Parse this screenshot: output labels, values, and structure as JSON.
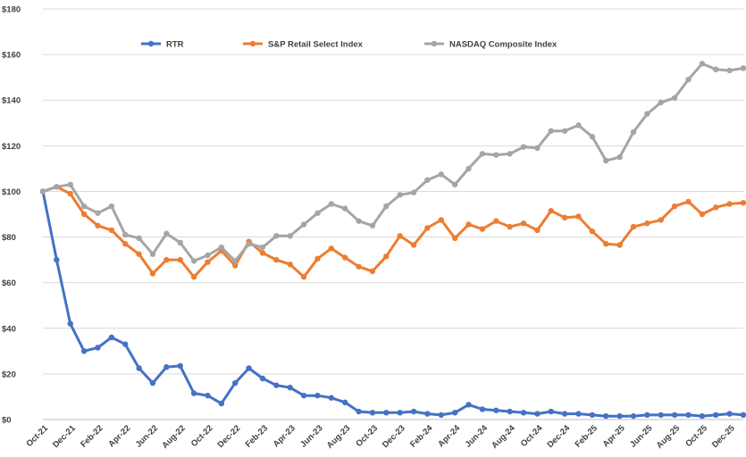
{
  "chart_data": {
    "type": "line",
    "title": "",
    "xlabel": "",
    "ylabel": "",
    "ylim": [
      0,
      180
    ],
    "yticks": [
      0,
      20,
      40,
      60,
      80,
      100,
      120,
      140,
      160,
      180
    ],
    "y_tick_labels": [
      "$0",
      "$20",
      "$40",
      "$60",
      "$80",
      "$100",
      "$120",
      "$140",
      "$160",
      "$180"
    ],
    "grid": "horizontal",
    "legend_position": "top-left",
    "x_tick_labels": [
      "Oct-21",
      "Dec-21",
      "Feb-22",
      "Apr-22",
      "Jun-22",
      "Aug-22",
      "Oct-22",
      "Dec-22",
      "Feb-23",
      "Apr-23",
      "Jun-23",
      "Aug-23",
      "Oct-23",
      "Dec-23",
      "Feb-24",
      "Apr-24",
      "Jun-24",
      "Aug-24",
      "Oct-24",
      "Dec-24",
      "Feb-25",
      "Apr-25",
      "Jun-25",
      "Aug-25",
      "Oct-25",
      "Dec-25"
    ],
    "x": [
      "Oct-21",
      "Nov-21",
      "Dec-21",
      "Jan-22",
      "Feb-22",
      "Mar-22",
      "Apr-22",
      "May-22",
      "Jun-22",
      "Jul-22",
      "Aug-22",
      "Sep-22",
      "Oct-22",
      "Nov-22",
      "Dec-22",
      "Jan-23",
      "Feb-23",
      "Mar-23",
      "Apr-23",
      "May-23",
      "Jun-23",
      "Jul-23",
      "Aug-23",
      "Sep-23",
      "Oct-23",
      "Nov-23",
      "Dec-23",
      "Jan-24",
      "Feb-24",
      "Mar-24",
      "Apr-24",
      "May-24",
      "Jun-24",
      "Jul-24",
      "Aug-24",
      "Sep-24",
      "Oct-24",
      "Nov-24",
      "Dec-24",
      "Jan-25",
      "Feb-25",
      "Mar-25",
      "Apr-25",
      "May-25",
      "Jun-25",
      "Jul-25",
      "Aug-25",
      "Sep-25",
      "Oct-25",
      "Nov-25",
      "Dec-25",
      "Jan-26"
    ],
    "series": [
      {
        "name": "RTR",
        "color": "#4472C4",
        "values": [
          100,
          70,
          42,
          30,
          31.5,
          36,
          33,
          22.5,
          16,
          23,
          23.5,
          11.5,
          10.5,
          7,
          16,
          22.5,
          18,
          15,
          14,
          10.5,
          10.5,
          9.5,
          7.5,
          3.5,
          3,
          3,
          3,
          3.5,
          2.5,
          2,
          3,
          6.5,
          4.5,
          4,
          3.5,
          3,
          2.5,
          3.5,
          2.5,
          2.5,
          2,
          1.5,
          1.5,
          1.5,
          2,
          2,
          2,
          2,
          1.5,
          2,
          2.5,
          2
        ]
      },
      {
        "name": "S&P Retail Select Index",
        "color": "#ED7D31",
        "values": [
          100,
          102,
          99,
          90,
          85,
          83,
          77,
          72.5,
          64,
          70,
          70,
          62.5,
          69,
          74,
          67.5,
          78,
          73,
          70,
          68,
          62.5,
          70.5,
          75,
          71,
          67,
          65,
          71.5,
          80.5,
          76.5,
          84,
          87.5,
          79.5,
          85.5,
          83.5,
          87,
          84.5,
          86,
          83,
          91.5,
          88.5,
          89,
          82.5,
          77,
          76.5,
          84.5,
          86,
          87.5,
          93.5,
          95.5,
          90,
          93,
          94.5,
          95
        ]
      },
      {
        "name": "NASDAQ Composite Index",
        "color": "#A5A5A5",
        "values": [
          100,
          102,
          103,
          93.5,
          90.5,
          93.5,
          81,
          79.5,
          72.5,
          81.5,
          77.5,
          69.5,
          72,
          75.5,
          69.5,
          77,
          75.5,
          80.5,
          80.5,
          85.5,
          90.5,
          94.5,
          92.5,
          87,
          85,
          93.5,
          98.5,
          99.5,
          105,
          107.5,
          103,
          110,
          116.5,
          116,
          116.5,
          119.5,
          119,
          126.5,
          126.5,
          129,
          124,
          113.5,
          115,
          126,
          134,
          139,
          141,
          149,
          156,
          153.5,
          153,
          154
        ]
      }
    ]
  }
}
